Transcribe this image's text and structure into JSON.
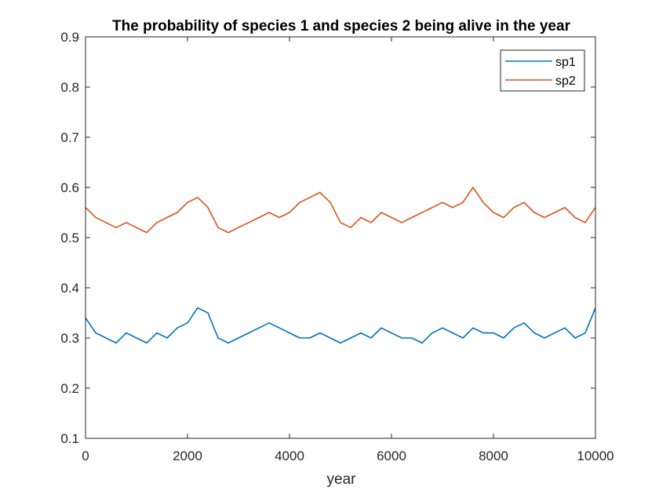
{
  "chart_data": {
    "type": "line",
    "title": "The probability of species 1 and species 2 being alive in the year",
    "xlabel": "year",
    "ylabel": "",
    "xlim": [
      0,
      10000
    ],
    "ylim": [
      0.1,
      0.9
    ],
    "xticks": [
      0,
      2000,
      4000,
      6000,
      8000,
      10000
    ],
    "xtick_labels": [
      "0",
      "2000",
      "4000",
      "6000",
      "8000",
      "10000"
    ],
    "yticks": [
      0.1,
      0.2,
      0.3,
      0.4,
      0.5,
      0.6,
      0.7,
      0.8,
      0.9
    ],
    "ytick_labels": [
      "0.1",
      "0.2",
      "0.3",
      "0.4",
      "0.5",
      "0.6",
      "0.7",
      "0.8",
      "0.9"
    ],
    "grid": false,
    "legend_position": "top-right",
    "x": [
      0,
      200,
      400,
      600,
      800,
      1000,
      1200,
      1400,
      1600,
      1800,
      2000,
      2200,
      2400,
      2600,
      2800,
      3000,
      3200,
      3400,
      3600,
      3800,
      4000,
      4200,
      4400,
      4600,
      4800,
      5000,
      5200,
      5400,
      5600,
      5800,
      6000,
      6200,
      6400,
      6600,
      6800,
      7000,
      7200,
      7400,
      7600,
      7800,
      8000,
      8200,
      8400,
      8600,
      8800,
      9000,
      9200,
      9400,
      9600,
      9800,
      10000
    ],
    "series": [
      {
        "name": "sp1",
        "color": "#0072BD",
        "values": [
          0.34,
          0.31,
          0.3,
          0.29,
          0.31,
          0.3,
          0.29,
          0.31,
          0.3,
          0.32,
          0.33,
          0.36,
          0.35,
          0.3,
          0.29,
          0.3,
          0.31,
          0.32,
          0.33,
          0.32,
          0.31,
          0.3,
          0.3,
          0.31,
          0.3,
          0.29,
          0.3,
          0.31,
          0.3,
          0.32,
          0.31,
          0.3,
          0.3,
          0.29,
          0.31,
          0.32,
          0.31,
          0.3,
          0.32,
          0.31,
          0.31,
          0.3,
          0.32,
          0.33,
          0.31,
          0.3,
          0.31,
          0.32,
          0.3,
          0.31,
          0.36
        ]
      },
      {
        "name": "sp2",
        "color": "#D95319",
        "values": [
          0.56,
          0.54,
          0.53,
          0.52,
          0.53,
          0.52,
          0.51,
          0.53,
          0.54,
          0.55,
          0.57,
          0.58,
          0.56,
          0.52,
          0.51,
          0.52,
          0.53,
          0.54,
          0.55,
          0.54,
          0.55,
          0.57,
          0.58,
          0.59,
          0.57,
          0.53,
          0.52,
          0.54,
          0.53,
          0.55,
          0.54,
          0.53,
          0.54,
          0.55,
          0.56,
          0.57,
          0.56,
          0.57,
          0.6,
          0.57,
          0.55,
          0.54,
          0.56,
          0.57,
          0.55,
          0.54,
          0.55,
          0.56,
          0.54,
          0.53,
          0.56
        ]
      }
    ]
  }
}
